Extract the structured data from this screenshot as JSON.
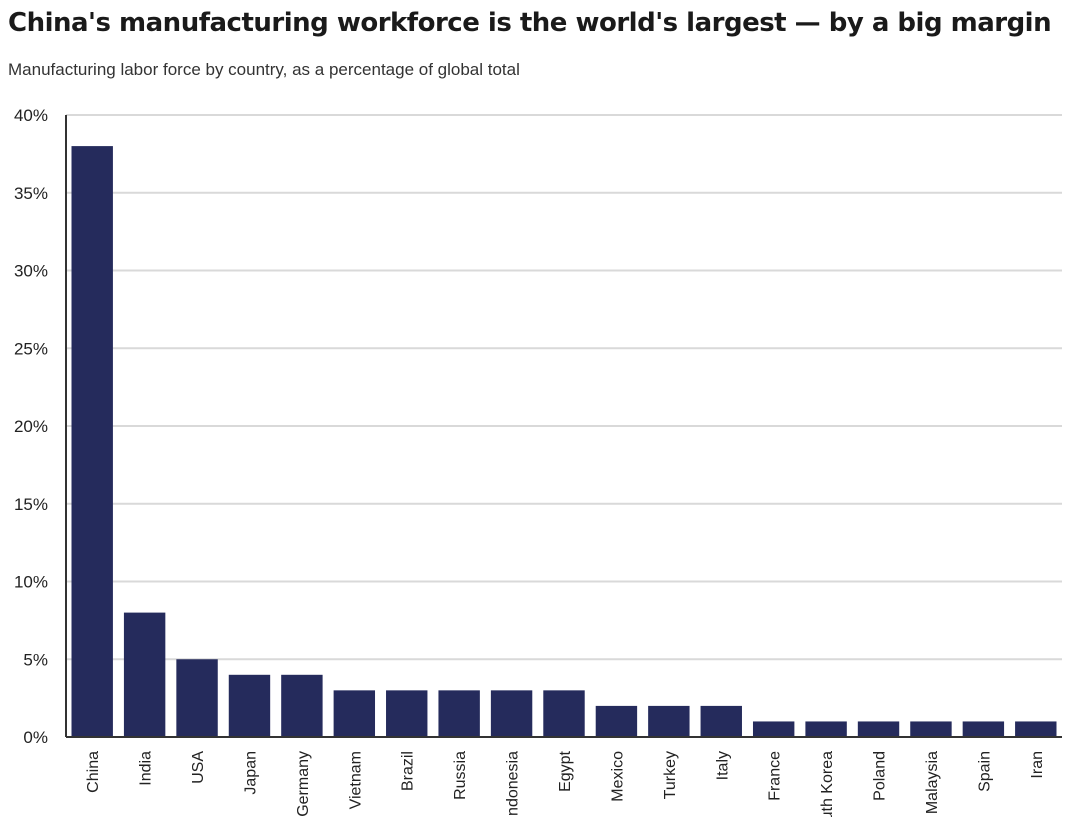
{
  "chart_data": {
    "type": "bar",
    "title": "China's manufacturing workforce is the world's largest — by a big margin",
    "subtitle": "Manufacturing labor force by country, as a percentage of global total",
    "categories": [
      "China",
      "India",
      "USA",
      "Japan",
      "Germany",
      "Vietnam",
      "Brazil",
      "Russia",
      "Indonesia",
      "Egypt",
      "Mexico",
      "Turkey",
      "Italy",
      "France",
      "South Korea",
      "Poland",
      "Malaysia",
      "Spain",
      "Iran"
    ],
    "values": [
      38,
      8,
      5,
      4,
      4,
      3,
      3,
      3,
      3,
      3,
      2,
      2,
      2,
      1,
      1,
      1,
      1,
      1,
      1
    ],
    "ylim": [
      0,
      40
    ],
    "y_ticks": [
      "0%",
      "5%",
      "10%",
      "15%",
      "20%",
      "25%",
      "30%",
      "35%",
      "40%"
    ],
    "xlabel": "",
    "ylabel": "",
    "grid": true,
    "legend": "none",
    "bar_color": "#252b5c",
    "grid_color": "#d9d9d9"
  }
}
